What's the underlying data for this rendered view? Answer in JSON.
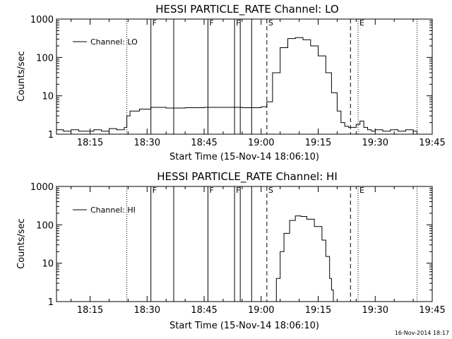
{
  "stamp": "16-Nov-2014 18:17",
  "chart_data": [
    {
      "type": "line",
      "title": "HESSI PARTICLE_RATE Channel: LO",
      "xlabel": "Start Time (15-Nov-14 18:06:10)",
      "ylabel": "Counts/sec",
      "y_scale": "log",
      "ylim": [
        1,
        1000
      ],
      "y_ticks": [
        1,
        10,
        100,
        1000
      ],
      "y_tick_labels": [
        "1",
        "10",
        "100",
        "1000"
      ],
      "xlim": [
        "18:06:10",
        "19:45:00"
      ],
      "x_ticks": [
        "18:15",
        "18:30",
        "18:45",
        "19:00",
        "19:15",
        "19:30",
        "19:45"
      ],
      "grid": false,
      "legend": {
        "position": "upper-left",
        "label": "Channel: LO"
      },
      "markers": [
        {
          "time": "18:24:40",
          "style": "dotted",
          "label": ""
        },
        {
          "time": "18:31:00",
          "style": "solid",
          "label": "F"
        },
        {
          "time": "18:37:00",
          "style": "solid",
          "label": ""
        },
        {
          "time": "18:46:00",
          "style": "solid",
          "label": "F"
        },
        {
          "time": "18:53:00",
          "style": "solid",
          "label": "F"
        },
        {
          "time": "18:54:30",
          "style": "solid",
          "label": ""
        },
        {
          "time": "18:57:30",
          "style": "solid",
          "label": ""
        },
        {
          "time": "19:01:30",
          "style": "dashed",
          "label": "S"
        },
        {
          "time": "19:23:30",
          "style": "dashed",
          "label": ""
        },
        {
          "time": "19:25:30",
          "style": "dotted",
          "label": "E"
        },
        {
          "time": "19:41:00",
          "style": "dotted",
          "label": ""
        }
      ],
      "series": [
        {
          "name": "",
          "x": [
            "18:06:10",
            "18:08:00",
            "18:10:00",
            "18:12:00",
            "18:14:00",
            "18:16:00",
            "18:18:00",
            "18:20:00",
            "18:22:00",
            "18:24:00",
            "18:24:40",
            "18:25:30",
            "18:28:00",
            "18:31:00",
            "18:35:00",
            "18:40:00",
            "18:45:00",
            "18:50:00",
            "18:55:00",
            "19:00:00",
            "19:01:30",
            "19:03:00",
            "19:05:00",
            "19:07:00",
            "19:09:00",
            "19:11:00",
            "19:13:00",
            "19:15:00",
            "19:17:00",
            "19:18:30",
            "19:20:00",
            "19:21:00",
            "19:22:00",
            "19:23:00",
            "19:24:00",
            "19:25:00",
            "19:26:00",
            "19:27:00",
            "19:28:00",
            "19:29:00",
            "19:30:00",
            "19:32:00",
            "19:34:00",
            "19:36:00",
            "19:38:00",
            "19:40:00",
            "19:41:00"
          ],
          "y": [
            1.3,
            1.2,
            1.3,
            1.2,
            1.2,
            1.3,
            1.2,
            1.4,
            1.3,
            1.5,
            3,
            4,
            4.5,
            5,
            4.8,
            4.9,
            5,
            5,
            4.9,
            5.2,
            7,
            40,
            180,
            310,
            330,
            290,
            200,
            110,
            40,
            12,
            4,
            2,
            1.6,
            1.5,
            1.5,
            1.8,
            2.2,
            1.5,
            1.3,
            1.2,
            1.3,
            1.2,
            1.3,
            1.2,
            1.3,
            1.2,
            1
          ]
        }
      ]
    },
    {
      "type": "line",
      "title": "HESSI PARTICLE_RATE Channel: HI",
      "xlabel": "Start Time (15-Nov-14 18:06:10)",
      "ylabel": "Counts/sec",
      "y_scale": "log",
      "ylim": [
        1,
        1000
      ],
      "y_ticks": [
        1,
        10,
        100,
        1000
      ],
      "y_tick_labels": [
        "1",
        "10",
        "100",
        "1000"
      ],
      "xlim": [
        "18:06:10",
        "19:45:00"
      ],
      "x_ticks": [
        "18:15",
        "18:30",
        "18:45",
        "19:00",
        "19:15",
        "19:30",
        "19:45"
      ],
      "grid": false,
      "legend": {
        "position": "upper-left",
        "label": "Channel: HI"
      },
      "markers": [
        {
          "time": "18:24:40",
          "style": "dotted",
          "label": ""
        },
        {
          "time": "18:31:00",
          "style": "solid",
          "label": "F"
        },
        {
          "time": "18:37:00",
          "style": "solid",
          "label": ""
        },
        {
          "time": "18:46:00",
          "style": "solid",
          "label": "F"
        },
        {
          "time": "18:53:00",
          "style": "solid",
          "label": "F"
        },
        {
          "time": "18:54:30",
          "style": "solid",
          "label": ""
        },
        {
          "time": "18:57:30",
          "style": "solid",
          "label": ""
        },
        {
          "time": "19:01:30",
          "style": "dashed",
          "label": "S"
        },
        {
          "time": "19:23:30",
          "style": "dashed",
          "label": ""
        },
        {
          "time": "19:25:30",
          "style": "dotted",
          "label": "E"
        },
        {
          "time": "19:41:00",
          "style": "dotted",
          "label": ""
        }
      ],
      "series": [
        {
          "name": "",
          "x": [
            "19:03:00",
            "19:04:00",
            "19:05:00",
            "19:06:00",
            "19:07:30",
            "19:09:00",
            "19:10:30",
            "19:12:00",
            "19:14:00",
            "19:16:00",
            "19:17:00",
            "19:18:00",
            "19:18:30",
            "19:19:00"
          ],
          "y": [
            1,
            4,
            20,
            60,
            130,
            170,
            165,
            140,
            90,
            40,
            15,
            4,
            2,
            1
          ]
        }
      ]
    }
  ]
}
